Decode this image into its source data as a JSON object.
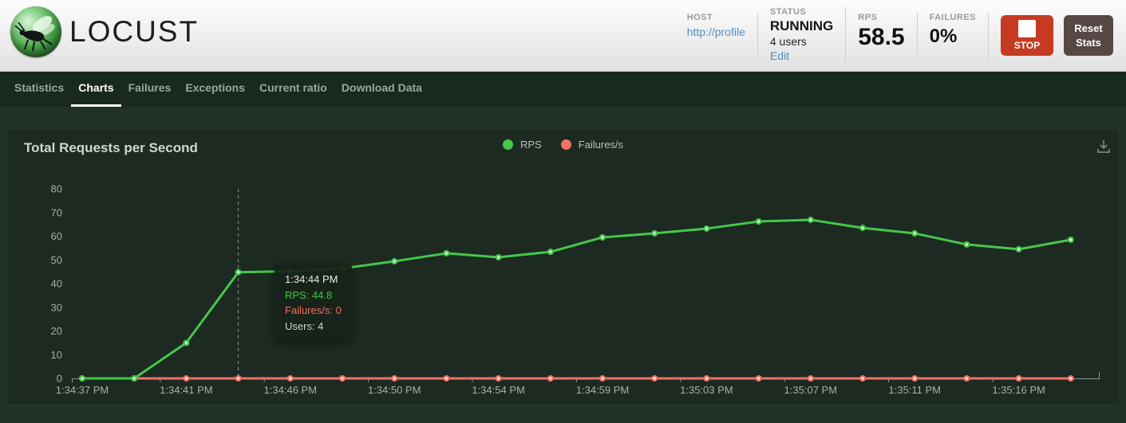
{
  "header": {
    "logo_text": "LOCUST",
    "host": {
      "label": "HOST",
      "value": "http://profile"
    },
    "status": {
      "label": "STATUS",
      "value": "RUNNING",
      "users": "4 users",
      "edit_label": "Edit"
    },
    "rps": {
      "label": "RPS",
      "value": "58.5"
    },
    "failures": {
      "label": "FAILURES",
      "value": "0%"
    },
    "stop_label": "STOP",
    "reset_label": "Reset Stats",
    "stop_color": "#c63a22",
    "reset_color": "#564845"
  },
  "nav": {
    "tabs": [
      {
        "label": "Statistics",
        "active": false
      },
      {
        "label": "Charts",
        "active": true
      },
      {
        "label": "Failures",
        "active": false
      },
      {
        "label": "Exceptions",
        "active": false
      },
      {
        "label": "Current ratio",
        "active": false
      },
      {
        "label": "Download Data",
        "active": false
      }
    ]
  },
  "tooltip": {
    "time": "1:34:44 PM",
    "rps_line": "RPS: 44.8",
    "failures_line": "Failures/s: 0",
    "users_line": "Users: 4"
  },
  "chart_data": {
    "type": "line",
    "title": "Total Requests per Second",
    "x": [
      "1:34:37 PM",
      "1:34:39 PM",
      "1:34:41 PM",
      "1:34:44 PM",
      "1:34:46 PM",
      "1:34:48 PM",
      "1:34:50 PM",
      "1:34:52 PM",
      "1:34:54 PM",
      "1:34:56 PM",
      "1:34:59 PM",
      "1:35:01 PM",
      "1:35:03 PM",
      "1:35:05 PM",
      "1:35:07 PM",
      "1:35:09 PM",
      "1:35:11 PM",
      "1:35:13 PM",
      "1:35:16 PM",
      "1:35:18 PM"
    ],
    "x_labeled_indices": [
      0,
      2,
      4,
      6,
      8,
      10,
      12,
      14,
      16,
      18
    ],
    "series": [
      {
        "name": "RPS",
        "color": "#45c74a",
        "values": [
          0,
          0,
          15,
          44.8,
          45.2,
          46.4,
          49.4,
          52.8,
          51.1,
          53.4,
          59.5,
          61.2,
          63.2,
          66.2,
          66.9,
          63.5,
          61.2,
          56.5,
          54.5,
          58.5
        ]
      },
      {
        "name": "Failures/s",
        "color": "#ee7268",
        "values": [
          0,
          0,
          0,
          0,
          0,
          0,
          0,
          0,
          0,
          0,
          0,
          0,
          0,
          0,
          0,
          0,
          0,
          0,
          0,
          0
        ]
      }
    ],
    "ylim": [
      0,
      80
    ],
    "yticks": [
      0,
      10,
      20,
      30,
      40,
      50,
      60,
      70,
      80
    ],
    "grid": false,
    "legend_position": "top-center",
    "tooltip_index": 3,
    "xlabel": "",
    "ylabel": ""
  }
}
